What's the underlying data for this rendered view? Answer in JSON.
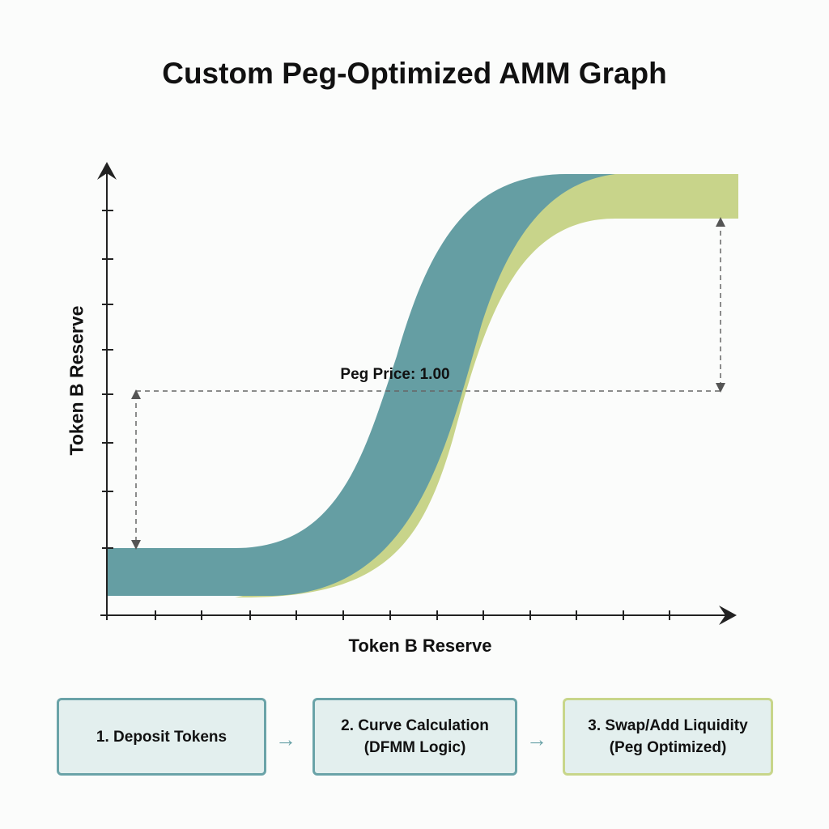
{
  "title": "Custom Peg-Optimized AMM Graph",
  "graph": {
    "y_axis_label": "Token B Reserve",
    "x_axis_label": "Token B Reserve",
    "peg_label": "Peg Price: 1.00",
    "colors": {
      "curve_primary": "#659ea3",
      "curve_secondary": "#c8d48a",
      "axis": "#222222",
      "dashed": "#666666"
    }
  },
  "flow": {
    "steps": [
      {
        "line1": "1. Deposit Tokens",
        "line2": ""
      },
      {
        "line1": "2. Curve Calculation",
        "line2": "(DFMM Logic)"
      },
      {
        "line1": "3. Swap/Add Liquidity",
        "line2": "(Peg Optimized)"
      }
    ],
    "arrow_icon": "arrow-right-icon",
    "colors": {
      "box_border": "#6aa3a8",
      "box_border_final": "#c8d68a",
      "box_fill": "#e3efee"
    }
  }
}
